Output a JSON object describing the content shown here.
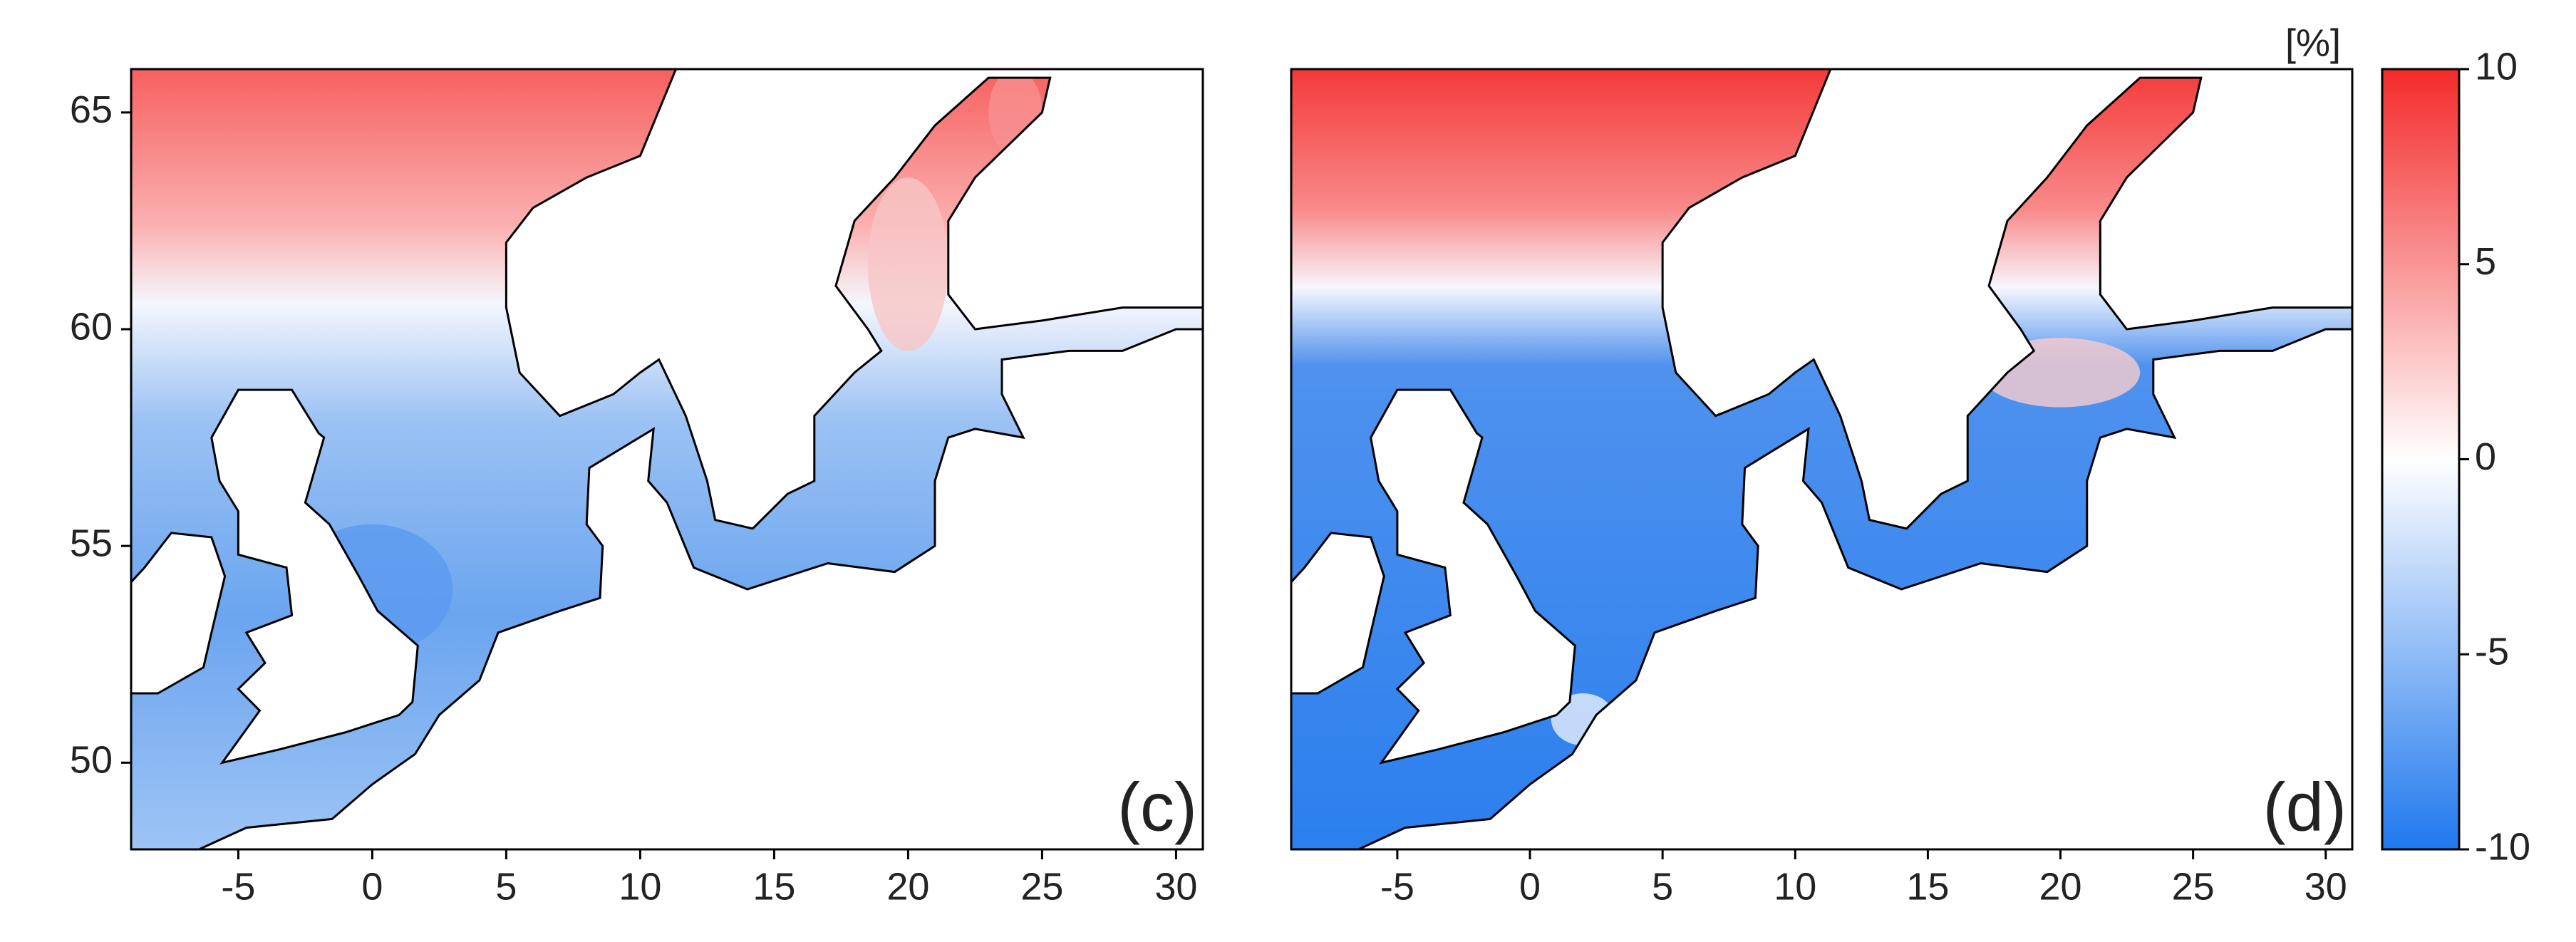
{
  "panels": [
    {
      "label": "(c)",
      "xlim": [
        -9,
        31
      ],
      "ylim": [
        48,
        66
      ],
      "xticks": [
        -5,
        0,
        5,
        10,
        15,
        20,
        25,
        30
      ],
      "yticks": [
        50,
        55,
        60,
        65
      ]
    },
    {
      "label": "(d)",
      "xlim": [
        -9,
        31
      ],
      "ylim": [
        48,
        66
      ],
      "xticks": [
        -5,
        0,
        5,
        10,
        15,
        20,
        25,
        30
      ]
    }
  ],
  "colorbar": {
    "label": "[%]",
    "lim": [
      -10,
      10
    ],
    "ticks": [
      -10,
      -5,
      0,
      5,
      10
    ],
    "colors": [
      "#1f78ee",
      "#ffffff",
      "#f42a2a"
    ]
  }
}
